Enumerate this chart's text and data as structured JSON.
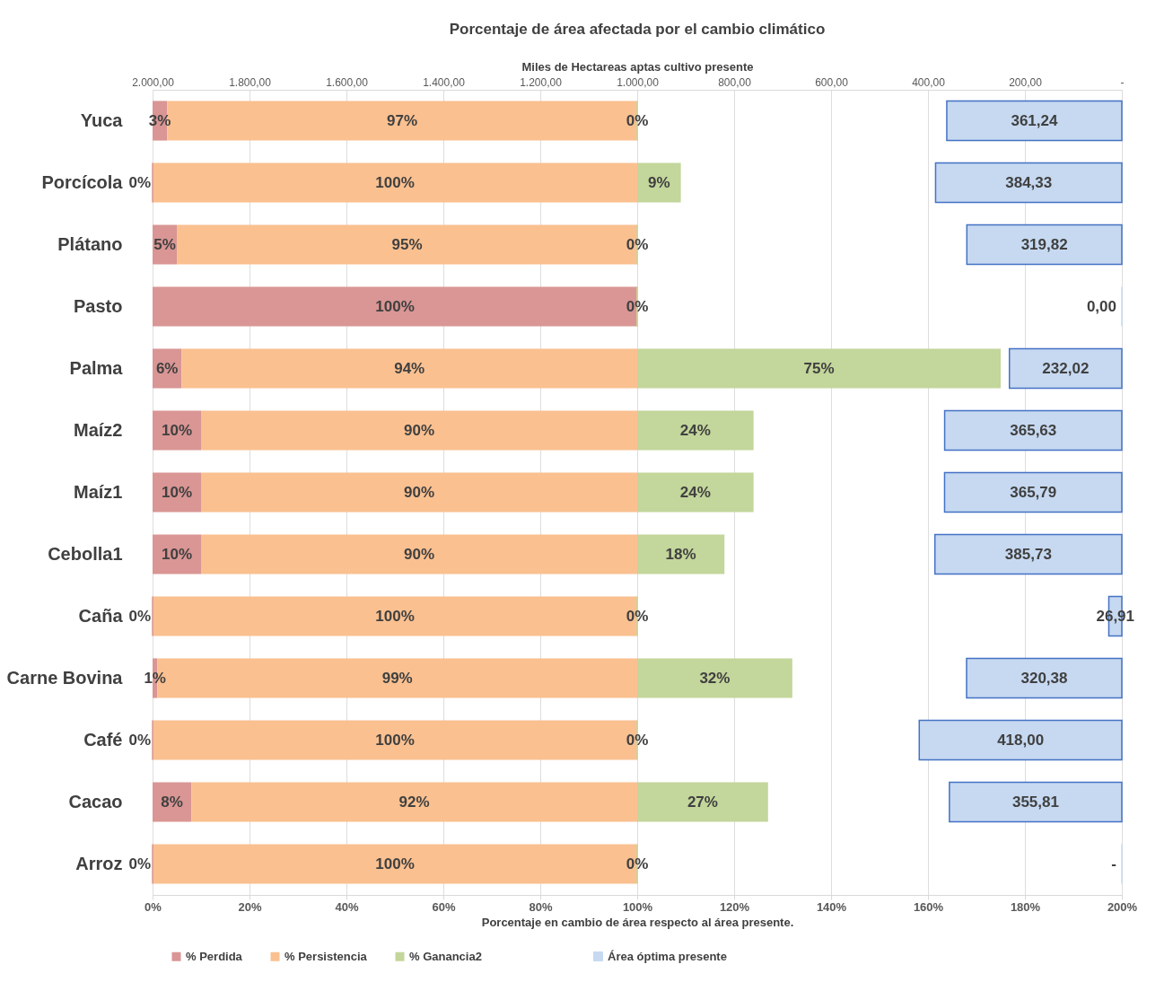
{
  "chart_data": [
    {
      "type": "bar",
      "orientation": "horizontal",
      "stacked": true,
      "title": "Porcentaje de área afectada por el cambio climático",
      "xlabel": "Porcentaje en cambio  de área respecto al área presente.",
      "categories": [
        "Yuca",
        "Porcícola",
        "Plátano",
        "Pasto",
        "Palma",
        "Maíz2",
        "Maíz1",
        "Cebolla1",
        "Caña",
        "Carne Bovina",
        "Café",
        "Cacao",
        "Arroz"
      ],
      "series": [
        {
          "name": "% Perdida",
          "color": "#d99694",
          "values": [
            3,
            0,
            5,
            100,
            6,
            10,
            10,
            10,
            0,
            1,
            0,
            8,
            0
          ],
          "value_labels": [
            "3%",
            "0%",
            "5%",
            "100%",
            "6%",
            "10%",
            "10%",
            "10%",
            "0%",
            "1%",
            "0%",
            "8%",
            "0%"
          ]
        },
        {
          "name": "% Persistencia",
          "color": "#fac090",
          "values": [
            97,
            100,
            95,
            0,
            94,
            90,
            90,
            90,
            100,
            99,
            100,
            92,
            100
          ],
          "value_labels": [
            "97%",
            "100%",
            "95%",
            null,
            "94%",
            "90%",
            "90%",
            "90%",
            "100%",
            "99%",
            "100%",
            "92%",
            "100%"
          ]
        },
        {
          "name": "% Ganancia2",
          "color": "#c3d69b",
          "values": [
            0,
            9,
            0,
            0,
            75,
            24,
            24,
            18,
            0,
            32,
            0,
            27,
            0
          ],
          "value_labels": [
            "0%",
            "9%",
            "0%",
            "0%",
            "75%",
            "24%",
            "24%",
            "18%",
            "0%",
            "32%",
            "0%",
            "27%",
            "0%"
          ]
        }
      ],
      "xlim": [
        0,
        200
      ],
      "xticks": [
        {
          "value": 0,
          "label": "0%"
        },
        {
          "value": 20,
          "label": "20%"
        },
        {
          "value": 40,
          "label": "40%"
        },
        {
          "value": 60,
          "label": "60%"
        },
        {
          "value": 80,
          "label": "80%"
        },
        {
          "value": 100,
          "label": "100%"
        },
        {
          "value": 120,
          "label": "120%"
        },
        {
          "value": 140,
          "label": "140%"
        },
        {
          "value": 160,
          "label": "160%"
        },
        {
          "value": 180,
          "label": "180%"
        },
        {
          "value": 200,
          "label": "200%"
        }
      ],
      "grid": "x",
      "legend": "bottom"
    },
    {
      "type": "bar",
      "orientation": "horizontal",
      "x2label": "Miles de Hectareas aptas cultivo presente",
      "categories": [
        null,
        null,
        null,
        null,
        null,
        null,
        null,
        null,
        null,
        null,
        null,
        null,
        null
      ],
      "series": [
        {
          "name": "Área óptima presente",
          "color": "#c6d9f1",
          "axis": "x2",
          "values": [
            361.24,
            384.33,
            319.82,
            0,
            232.02,
            365.63,
            365.79,
            385.73,
            26.91,
            320.38,
            418.0,
            355.81,
            0
          ],
          "value_labels": [
            "361,24",
            "384,33",
            "319,82",
            "0,00",
            "232,02",
            "365,63",
            "365,79",
            "385,73",
            "26,91",
            "320,38",
            "418,00",
            "355,81",
            "-"
          ]
        }
      ],
      "x2lim": [
        2000,
        0
      ],
      "x2ticks": [
        {
          "value": 2000,
          "label": "2.000,00"
        },
        {
          "value": 1800,
          "label": "1.800,00"
        },
        {
          "value": 1600,
          "label": "1.600,00"
        },
        {
          "value": 1400,
          "label": "1.400,00"
        },
        {
          "value": 1200,
          "label": "1.200,00"
        },
        {
          "value": 1000,
          "label": "1.000,00"
        },
        {
          "value": 800,
          "label": "800,00"
        },
        {
          "value": 600,
          "label": "600,00"
        },
        {
          "value": 400,
          "label": "400,00"
        },
        {
          "value": 200,
          "label": "200,00"
        },
        {
          "value": 0,
          "label": "-"
        }
      ],
      "tick_labels": "x",
      "legend": "bottom"
    }
  ]
}
